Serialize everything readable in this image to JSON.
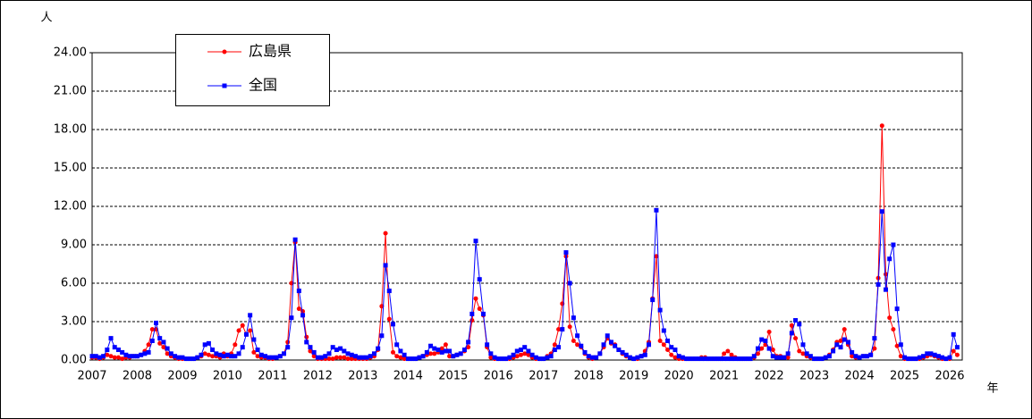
{
  "chart_data": {
    "type": "line",
    "y_label": "人",
    "x_label": "年",
    "ylim": [
      0,
      24
    ],
    "yticks": [
      {
        "value": 0,
        "label": "0.00"
      },
      {
        "value": 3,
        "label": "3.00"
      },
      {
        "value": 6,
        "label": "6.00"
      },
      {
        "value": 9,
        "label": "9.00"
      },
      {
        "value": 12,
        "label": "12.00"
      },
      {
        "value": 15,
        "label": "15.00"
      },
      {
        "value": 18,
        "label": "18.00"
      },
      {
        "value": 21,
        "label": "21.00"
      },
      {
        "value": 24,
        "label": "24.00"
      }
    ],
    "grid": true,
    "categories": [
      "2007",
      null,
      null,
      null,
      null,
      null,
      null,
      null,
      null,
      null,
      null,
      null,
      "2008",
      null,
      null,
      null,
      null,
      null,
      null,
      null,
      null,
      null,
      null,
      null,
      "2009",
      null,
      null,
      null,
      null,
      null,
      null,
      null,
      null,
      null,
      null,
      null,
      "2010",
      null,
      null,
      null,
      null,
      null,
      null,
      null,
      null,
      null,
      null,
      null,
      "2011",
      null,
      null,
      null,
      null,
      null,
      null,
      null,
      null,
      null,
      null,
      null,
      "2012",
      null,
      null,
      null,
      null,
      null,
      null,
      null,
      null,
      null,
      null,
      null,
      "2013",
      null,
      null,
      null,
      null,
      null,
      null,
      null,
      null,
      null,
      null,
      null,
      "2014",
      null,
      null,
      null,
      null,
      null,
      null,
      null,
      null,
      null,
      null,
      null,
      "2015",
      null,
      null,
      null,
      null,
      null,
      null,
      null,
      null,
      null,
      null,
      null,
      "2016",
      null,
      null,
      null,
      null,
      null,
      null,
      null,
      null,
      null,
      null,
      null,
      "2017",
      null,
      null,
      null,
      null,
      null,
      null,
      null,
      null,
      null,
      null,
      null,
      "2018",
      null,
      null,
      null,
      null,
      null,
      null,
      null,
      null,
      null,
      null,
      null,
      "2019",
      null,
      null,
      null,
      null,
      null,
      null,
      null,
      null,
      null,
      null,
      null,
      "2020",
      null,
      null,
      null,
      null,
      null,
      null,
      null,
      null,
      null,
      null,
      null,
      "2021",
      null,
      null,
      null,
      null,
      null,
      null,
      null,
      null,
      null,
      null,
      null,
      "2022",
      null,
      null,
      null,
      null,
      null,
      null,
      null,
      null,
      null,
      null,
      null,
      "2023",
      null,
      null,
      null,
      null,
      null,
      null,
      null,
      null,
      null,
      null,
      null,
      "2024",
      null,
      null,
      null,
      null,
      null,
      null,
      null,
      null,
      null,
      null,
      null,
      "2025",
      null,
      null,
      null,
      null,
      null,
      null,
      null,
      null,
      null,
      null,
      null,
      "2026",
      null,
      null
    ],
    "series": [
      {
        "name": "広島県",
        "color": "#ff0000",
        "marker": "circle",
        "values": [
          0.2,
          0.2,
          0.1,
          0.2,
          0.4,
          0.3,
          0.2,
          0.2,
          0.1,
          0.2,
          0.2,
          0.3,
          0.3,
          0.4,
          0.7,
          1.2,
          2.4,
          2.4,
          1.3,
          1.0,
          0.5,
          0.3,
          0.2,
          0.1,
          0.1,
          0.1,
          0.1,
          0.1,
          0.2,
          0.3,
          0.5,
          0.4,
          0.3,
          0.3,
          0.2,
          0.5,
          0.3,
          0.5,
          1.2,
          2.3,
          2.7,
          2.0,
          2.3,
          0.6,
          0.3,
          0.2,
          0.2,
          0.1,
          0.1,
          0.2,
          0.3,
          0.5,
          1.4,
          6.0,
          9.2,
          4.0,
          3.8,
          1.8,
          0.7,
          0.3,
          0.1,
          0.1,
          0.1,
          0.1,
          0.1,
          0.2,
          0.2,
          0.2,
          0.1,
          0.1,
          0.1,
          0.1,
          0.1,
          0.1,
          0.2,
          0.3,
          0.8,
          4.2,
          9.9,
          3.2,
          0.6,
          0.3,
          0.2,
          0.1,
          0.1,
          0.1,
          0.1,
          0.2,
          0.3,
          0.4,
          0.5,
          0.5,
          0.6,
          0.9,
          1.2,
          0.3,
          0.3,
          0.4,
          0.5,
          0.7,
          1.0,
          3.1,
          4.8,
          4.0,
          3.5,
          1.0,
          0.2,
          0.1,
          0.1,
          0.1,
          0.1,
          0.1,
          0.2,
          0.3,
          0.4,
          0.5,
          0.4,
          0.2,
          0.1,
          0.1,
          0.1,
          0.3,
          0.5,
          1.2,
          2.4,
          4.4,
          8.1,
          2.6,
          1.5,
          1.2,
          1.0,
          0.5,
          0.2,
          0.1,
          0.2,
          0.5,
          1.0,
          1.7,
          1.3,
          1.2,
          0.8,
          0.5,
          0.3,
          0.2,
          0.1,
          0.1,
          0.3,
          0.7,
          1.4,
          4.8,
          8.1,
          1.5,
          1.2,
          0.8,
          0.4,
          0.2,
          0.1,
          0.1,
          0.1,
          0.1,
          0.1,
          0.1,
          0.2,
          0.2,
          0.1,
          0.1,
          0.1,
          0.1,
          0.5,
          0.7,
          0.4,
          0.2,
          0.1,
          0.1,
          0.1,
          0.1,
          0.2,
          0.5,
          0.9,
          1.2,
          2.2,
          0.8,
          0.3,
          0.3,
          0.2,
          0.2,
          2.7,
          1.7,
          0.7,
          0.5,
          0.3,
          0.2,
          0.1,
          0.1,
          0.1,
          0.2,
          0.4,
          0.8,
          1.4,
          1.5,
          2.4,
          1.2,
          0.3,
          0.2,
          0.2,
          0.3,
          0.3,
          0.4,
          0.9,
          6.4,
          18.3,
          6.7,
          3.3,
          2.4,
          1.1,
          0.3,
          0.1,
          0.1,
          0.1,
          0.1,
          0.1,
          0.2,
          0.3,
          0.4,
          0.3,
          0.2,
          0.1,
          0.1,
          0.1,
          0.7,
          0.4
        ]
      },
      {
        "name": "全国",
        "color": "#0000ff",
        "marker": "square",
        "values": [
          0.3,
          0.3,
          0.2,
          0.3,
          0.8,
          1.7,
          1.0,
          0.8,
          0.6,
          0.4,
          0.3,
          0.3,
          0.3,
          0.4,
          0.5,
          0.6,
          1.5,
          2.9,
          1.7,
          1.4,
          0.9,
          0.5,
          0.3,
          0.2,
          0.2,
          0.1,
          0.1,
          0.1,
          0.2,
          0.4,
          1.2,
          1.3,
          0.8,
          0.5,
          0.4,
          0.3,
          0.4,
          0.3,
          0.3,
          0.5,
          1.0,
          2.0,
          3.5,
          1.6,
          0.8,
          0.4,
          0.3,
          0.2,
          0.2,
          0.2,
          0.3,
          0.5,
          1.0,
          3.3,
          9.4,
          5.4,
          3.5,
          1.4,
          1.0,
          0.6,
          0.2,
          0.2,
          0.3,
          0.5,
          1.0,
          0.8,
          0.9,
          0.7,
          0.5,
          0.4,
          0.3,
          0.2,
          0.2,
          0.2,
          0.3,
          0.5,
          0.9,
          1.9,
          7.4,
          5.4,
          2.8,
          1.2,
          0.7,
          0.4,
          0.1,
          0.1,
          0.1,
          0.2,
          0.3,
          0.6,
          1.1,
          0.9,
          0.8,
          0.6,
          0.7,
          0.7,
          0.3,
          0.4,
          0.5,
          0.8,
          1.4,
          3.6,
          9.3,
          6.3,
          3.6,
          1.2,
          0.5,
          0.2,
          0.1,
          0.1,
          0.1,
          0.2,
          0.4,
          0.7,
          0.8,
          1.0,
          0.7,
          0.4,
          0.2,
          0.1,
          0.1,
          0.2,
          0.3,
          0.8,
          1.0,
          2.4,
          8.4,
          6.0,
          3.3,
          1.9,
          1.1,
          0.6,
          0.3,
          0.2,
          0.2,
          0.5,
          1.2,
          1.9,
          1.4,
          1.1,
          0.8,
          0.6,
          0.4,
          0.2,
          0.1,
          0.2,
          0.3,
          0.4,
          1.2,
          4.7,
          11.7,
          3.9,
          2.3,
          1.5,
          1.0,
          0.8,
          0.3,
          0.2,
          0.1,
          0.1,
          0.1,
          0.1,
          0.1,
          0.1,
          0.1,
          0.1,
          0.1,
          0.1,
          0.1,
          0.1,
          0.1,
          0.1,
          0.1,
          0.1,
          0.1,
          0.1,
          0.3,
          0.9,
          1.6,
          1.5,
          0.9,
          0.3,
          0.2,
          0.2,
          0.2,
          0.5,
          2.1,
          3.1,
          2.8,
          1.2,
          0.5,
          0.3,
          0.1,
          0.1,
          0.1,
          0.2,
          0.3,
          0.7,
          1.2,
          1.0,
          1.6,
          1.4,
          0.6,
          0.3,
          0.2,
          0.3,
          0.3,
          0.4,
          1.7,
          5.9,
          11.6,
          5.5,
          7.9,
          9.0,
          4.0,
          1.2,
          0.2,
          0.1,
          0.1,
          0.1,
          0.2,
          0.3,
          0.5,
          0.5,
          0.4,
          0.3,
          0.2,
          0.1,
          0.2,
          2.0,
          1.0
        ]
      }
    ]
  }
}
